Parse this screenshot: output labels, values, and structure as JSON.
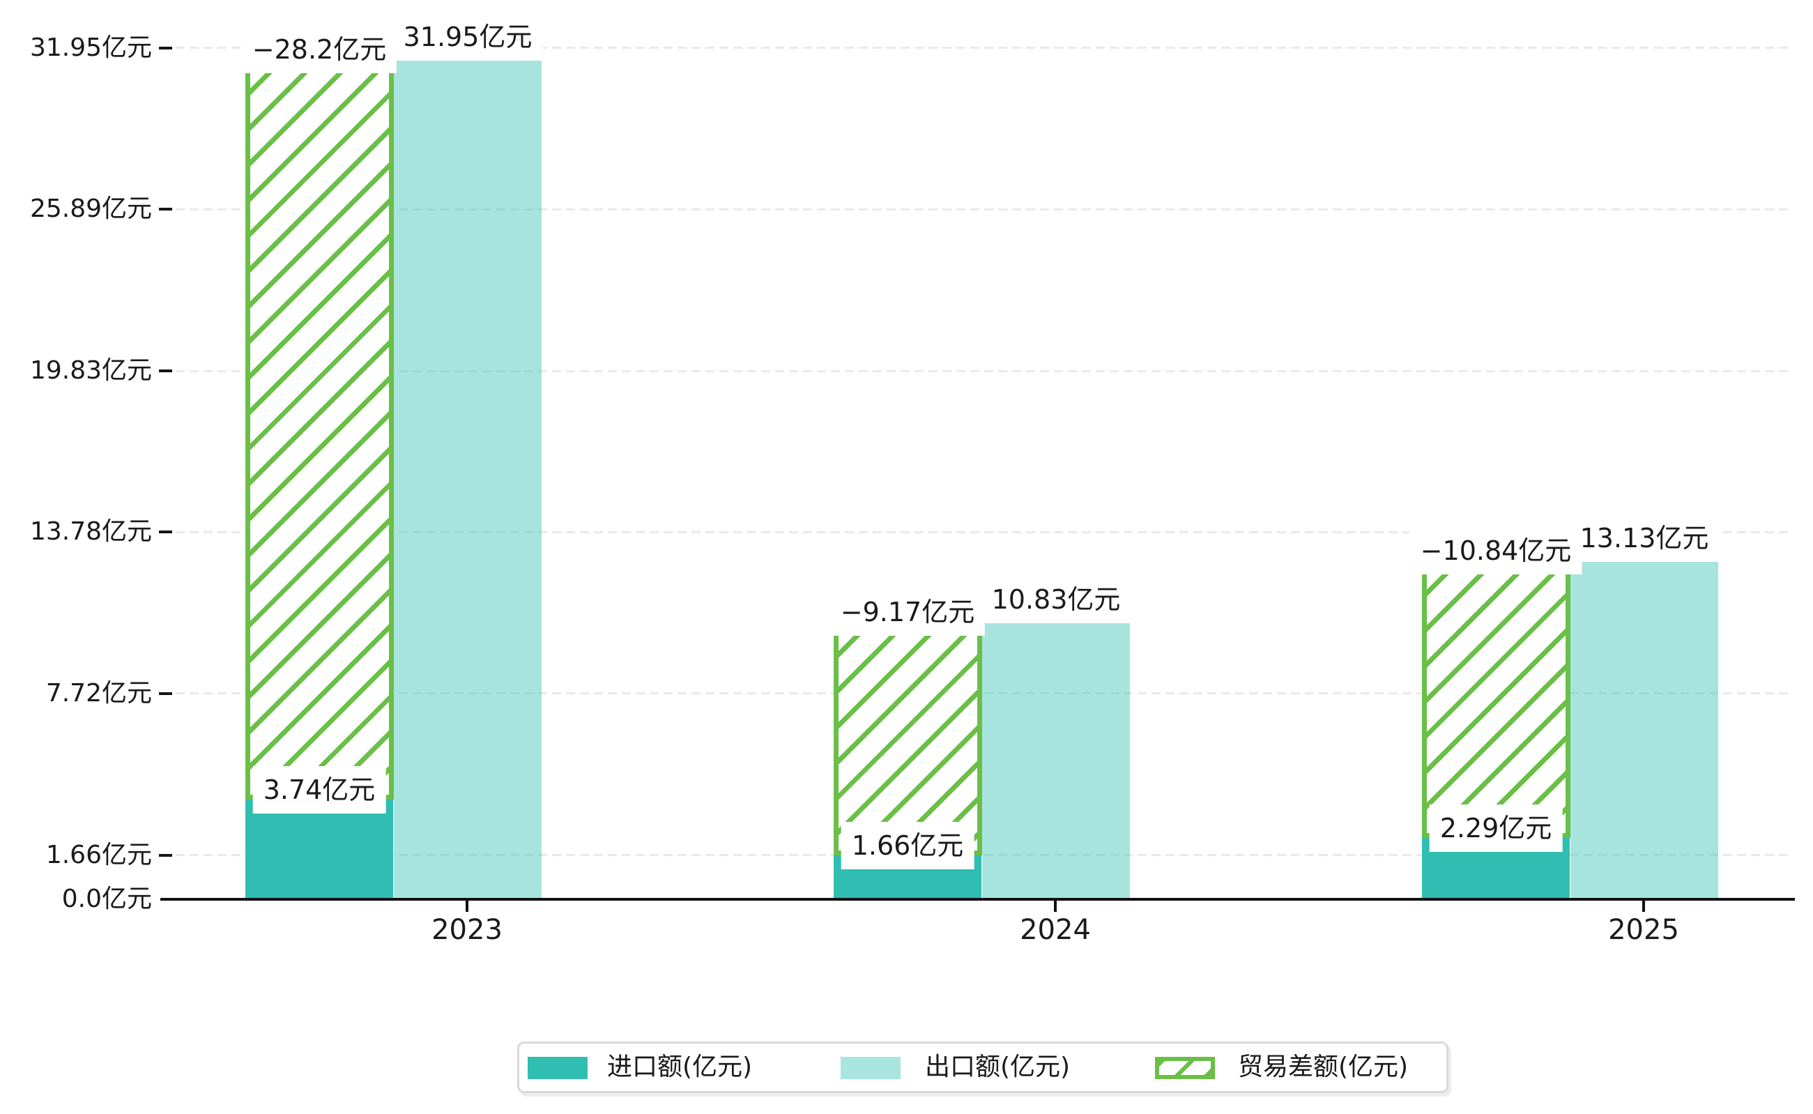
{
  "chart_data": {
    "type": "bar",
    "title": "",
    "categories": [
      "2023",
      "2024",
      "2025"
    ],
    "series": [
      {
        "name": "进口额(亿元)",
        "role": "import",
        "values": [
          3.74,
          1.66,
          2.29
        ],
        "labels": [
          "3.74亿元",
          "1.66亿元",
          "2.29亿元"
        ],
        "color": "#2fbeb1",
        "style": "solid"
      },
      {
        "name": "出口额(亿元)",
        "role": "export",
        "values": [
          31.95,
          10.83,
          13.13
        ],
        "labels": [
          "31.95亿元",
          "10.83亿元",
          "13.13亿元"
        ],
        "color": "#a8e6df",
        "style": "solid-translucent"
      },
      {
        "name": "贸易差额(亿元)",
        "role": "balance",
        "values": [
          -28.2,
          -9.17,
          -10.84
        ],
        "labels": [
          "−28.2亿元",
          "−9.17亿元",
          "−10.84亿元"
        ],
        "color": "#6abf47",
        "style": "hatched",
        "render": "stacked above import bar, spanning |balance| up to export level"
      }
    ],
    "yticks": [
      {
        "value": 0.0,
        "label": "0.0亿元"
      },
      {
        "value": 1.66,
        "label": "1.66亿元"
      },
      {
        "value": 7.72,
        "label": "7.72亿元"
      },
      {
        "value": 13.78,
        "label": "13.78亿元"
      },
      {
        "value": 19.83,
        "label": "19.83亿元"
      },
      {
        "value": 25.89,
        "label": "25.89亿元"
      },
      {
        "value": 31.95,
        "label": "31.95亿元"
      }
    ],
    "ylim": [
      0,
      31.95
    ],
    "xlabel": "",
    "ylabel": "",
    "grid": "horizontal dashed",
    "legend_position": "bottom-center"
  },
  "legend": {
    "items": [
      {
        "label": "进口额(亿元)",
        "swatch": "solid-teal"
      },
      {
        "label": "出口额(亿元)",
        "swatch": "solid-light-teal"
      },
      {
        "label": "贸易差额(亿元)",
        "swatch": "green-hatched-outline"
      }
    ]
  },
  "colors": {
    "import_bar": "#2fbeb1",
    "export_bar": "#a8e6df",
    "balance_hatch": "#6abf47",
    "axis": "#111111",
    "gridline": "#eaeaea",
    "legend_border": "#d9d9d9",
    "text": "#1a1a1a",
    "background": "#ffffff"
  }
}
